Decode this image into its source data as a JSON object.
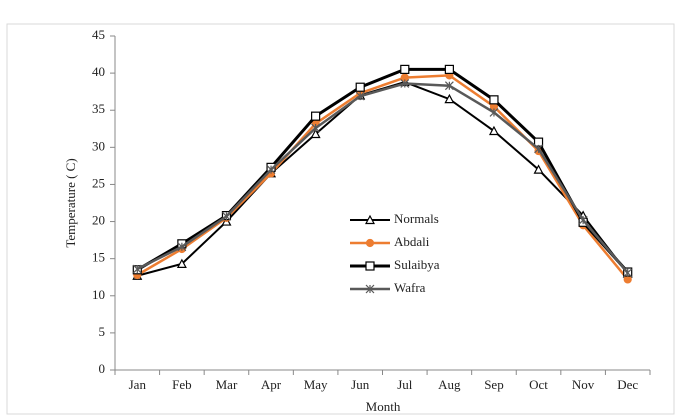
{
  "chart_data": {
    "type": "line",
    "categories": [
      "Jan",
      "Feb",
      "Mar",
      "Apr",
      "May",
      "Jun",
      "Jul",
      "Aug",
      "Sep",
      "Oct",
      "Nov",
      "Dec"
    ],
    "x_label": "Month",
    "y_label": "Temperature ( C)",
    "ylim": [
      0,
      45
    ],
    "yticks": [
      0,
      5,
      10,
      15,
      20,
      25,
      30,
      35,
      40,
      45
    ],
    "series": [
      {
        "name": "Normals",
        "color": "#000000",
        "marker": "triangle",
        "values": [
          12.7,
          14.3,
          20,
          26.5,
          31.8,
          37,
          38.8,
          36.5,
          32.2,
          27,
          20.8,
          13
        ]
      },
      {
        "name": "Abdali",
        "color": "#ed7d31",
        "marker": "circle",
        "values": [
          12.8,
          16.3,
          20.5,
          26.5,
          33.2,
          37.3,
          39.4,
          39.7,
          35.5,
          29.5,
          19.5,
          12.2
        ]
      },
      {
        "name": "Sulaibya",
        "color": "#000000",
        "marker": "square",
        "values": [
          13.5,
          17,
          20.8,
          27.3,
          34.2,
          38.1,
          40.5,
          40.5,
          36.4,
          30.7,
          19.9,
          13.2
        ]
      },
      {
        "name": "Wafra",
        "color": "#595959",
        "marker": "asterisk",
        "values": [
          13.6,
          16.6,
          20.7,
          27,
          32.6,
          36.9,
          38.6,
          38.3,
          34.7,
          29.8,
          20.2,
          13.1
        ]
      }
    ]
  }
}
